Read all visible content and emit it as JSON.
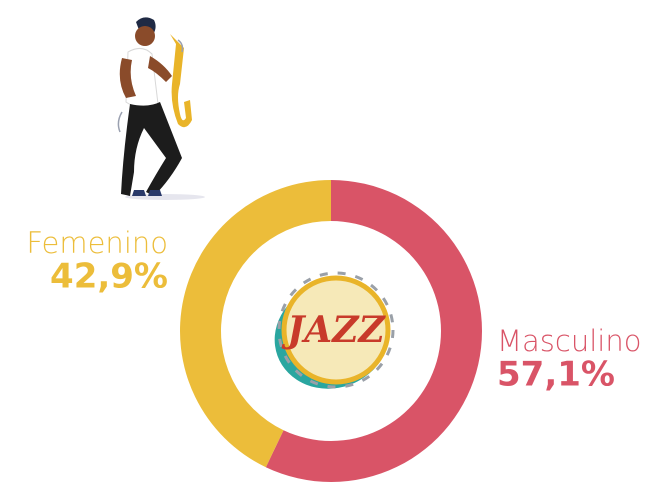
{
  "chart_data": {
    "type": "donut",
    "logo": "JAZZ",
    "categories": [
      "Masculino",
      "Femenino"
    ],
    "values": [
      57.1,
      42.9
    ],
    "value_labels": [
      "57,1%",
      "42,9%"
    ],
    "colors": [
      "#d95467",
      "#ecbd3a"
    ]
  }
}
